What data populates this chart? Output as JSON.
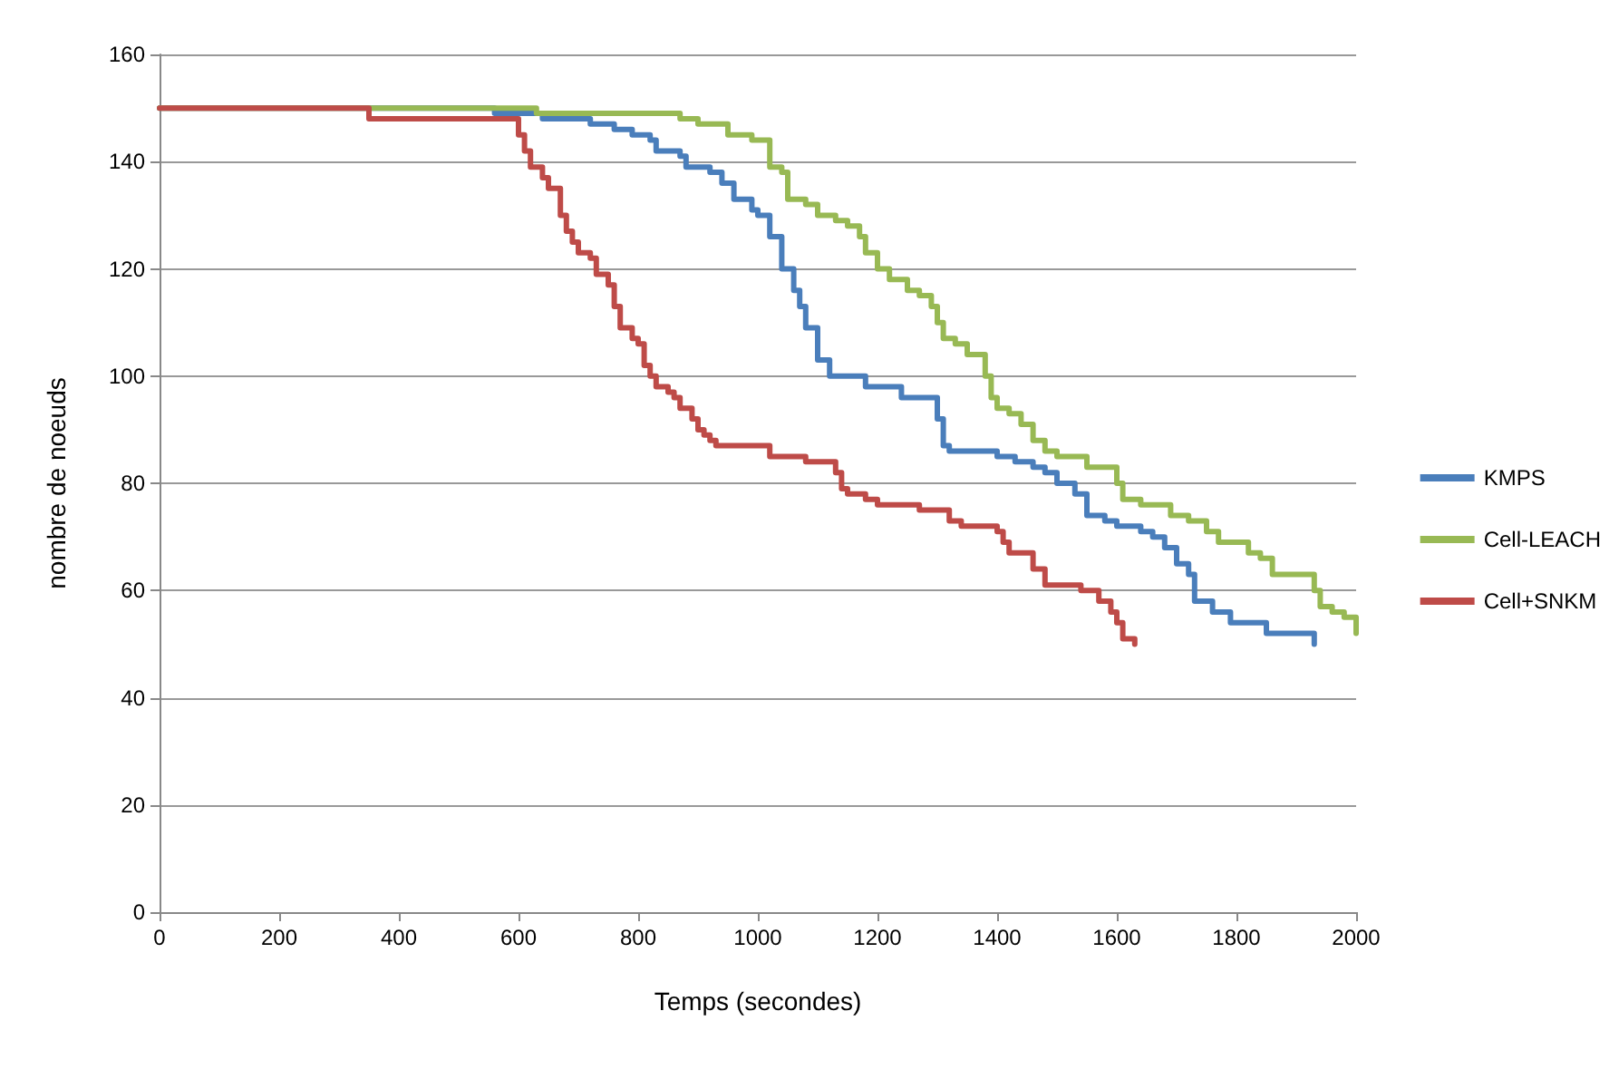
{
  "chart_data": {
    "type": "step",
    "xlabel": "Temps (secondes)",
    "ylabel": "nombre de noeuds",
    "xlim": [
      0,
      2000
    ],
    "xticks": [
      0,
      200,
      400,
      600,
      800,
      1000,
      1200,
      1400,
      1600,
      1800,
      2000
    ],
    "ylim": [
      0,
      160
    ],
    "yticks": [
      0,
      20,
      40,
      60,
      80,
      100,
      120,
      140,
      160
    ],
    "grid": "y",
    "legend": "right",
    "marker": "none",
    "line_style": "solid",
    "series": [
      {
        "name": "KMPS",
        "color": "#4a7ebb",
        "x": [
          0,
          540,
          560,
          620,
          640,
          700,
          720,
          760,
          790,
          820,
          830,
          870,
          880,
          920,
          940,
          960,
          990,
          1000,
          1020,
          1040,
          1060,
          1070,
          1080,
          1100,
          1120,
          1170,
          1180,
          1230,
          1240,
          1280,
          1300,
          1310,
          1320,
          1390,
          1400,
          1430,
          1460,
          1480,
          1500,
          1530,
          1550,
          1580,
          1600,
          1640,
          1660,
          1680,
          1700,
          1720,
          1730,
          1760,
          1790,
          1840,
          1850,
          1920,
          1930
        ],
        "values": [
          150,
          150,
          149,
          149,
          148,
          148,
          147,
          146,
          145,
          144,
          142,
          141,
          139,
          138,
          136,
          133,
          131,
          130,
          126,
          120,
          116,
          113,
          109,
          103,
          100,
          100,
          98,
          98,
          96,
          96,
          92,
          87,
          86,
          86,
          85,
          84,
          83,
          82,
          80,
          78,
          74,
          73,
          72,
          71,
          70,
          68,
          65,
          63,
          58,
          56,
          54,
          54,
          52,
          52,
          50
        ]
      },
      {
        "name": "Cell-LEACH",
        "color": "#98b954",
        "x": [
          0,
          620,
          630,
          850,
          870,
          900,
          940,
          950,
          990,
          1010,
          1020,
          1040,
          1050,
          1080,
          1100,
          1130,
          1150,
          1170,
          1180,
          1200,
          1220,
          1250,
          1270,
          1290,
          1300,
          1310,
          1330,
          1350,
          1370,
          1380,
          1390,
          1400,
          1420,
          1440,
          1460,
          1480,
          1500,
          1540,
          1550,
          1580,
          1600,
          1610,
          1640,
          1680,
          1690,
          1720,
          1750,
          1770,
          1800,
          1820,
          1840,
          1860,
          1910,
          1930,
          1940,
          1960,
          1980,
          2000
        ],
        "values": [
          150,
          150,
          149,
          149,
          148,
          147,
          147,
          145,
          144,
          144,
          139,
          138,
          133,
          132,
          130,
          129,
          128,
          126,
          123,
          120,
          118,
          116,
          115,
          113,
          110,
          107,
          106,
          104,
          104,
          100,
          96,
          94,
          93,
          91,
          88,
          86,
          85,
          85,
          83,
          83,
          80,
          77,
          76,
          76,
          74,
          73,
          71,
          69,
          69,
          67,
          66,
          63,
          63,
          60,
          57,
          56,
          55,
          52
        ]
      },
      {
        "name": "Cell+SNKM",
        "color": "#be4b48",
        "x": [
          0,
          340,
          350,
          580,
          600,
          610,
          620,
          640,
          650,
          660,
          670,
          680,
          690,
          700,
          720,
          730,
          750,
          760,
          770,
          790,
          800,
          810,
          820,
          830,
          850,
          860,
          870,
          890,
          900,
          910,
          920,
          930,
          1010,
          1020,
          1070,
          1080,
          1120,
          1130,
          1140,
          1150,
          1180,
          1200,
          1260,
          1270,
          1310,
          1320,
          1340,
          1400,
          1410,
          1420,
          1450,
          1460,
          1480,
          1520,
          1540,
          1560,
          1570,
          1590,
          1600,
          1610,
          1620,
          1630
        ],
        "values": [
          150,
          150,
          148,
          148,
          145,
          142,
          139,
          137,
          135,
          135,
          130,
          127,
          125,
          123,
          122,
          119,
          117,
          113,
          109,
          107,
          106,
          102,
          100,
          98,
          97,
          96,
          94,
          92,
          90,
          89,
          88,
          87,
          87,
          85,
          85,
          84,
          84,
          82,
          79,
          78,
          77,
          76,
          76,
          75,
          75,
          73,
          72,
          71,
          69,
          67,
          67,
          64,
          61,
          61,
          60,
          60,
          58,
          56,
          54,
          51,
          51,
          50
        ]
      }
    ]
  }
}
